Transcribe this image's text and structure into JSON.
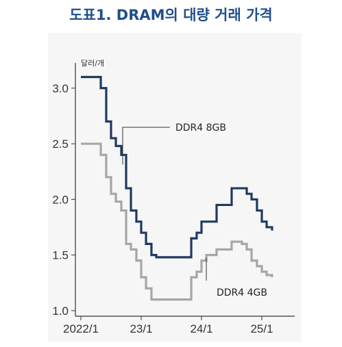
{
  "title": "도표1. DRAM의 대량 거래 가격",
  "chart_data": {
    "type": "line",
    "unit_label": "달러/개",
    "x_ticks": [
      "2022/1",
      "23/1",
      "24/1",
      "25/1"
    ],
    "y_ticks": [
      "1.0",
      "1.5",
      "2.0",
      "2.5",
      "3.0"
    ],
    "ylim": [
      0.95,
      3.3
    ],
    "xlim": [
      2022.0,
      2025.25
    ],
    "grid": false,
    "colors": {
      "ddr4_8gb": "#1e3a5f",
      "ddr4_4gb": "#a6a6a6",
      "title": "#1f4e8c"
    },
    "series": [
      {
        "name": "DDR4 8GB",
        "x": [
          2022.0,
          2022.25,
          2022.33,
          2022.42,
          2022.5,
          2022.58,
          2022.67,
          2022.75,
          2022.83,
          2022.92,
          2023.0,
          2023.08,
          2023.17,
          2023.25,
          2023.5,
          2023.75,
          2023.83,
          2023.92,
          2024.0,
          2024.25,
          2024.5,
          2024.75,
          2024.83,
          2024.92,
          2025.0,
          2025.08,
          2025.17
        ],
        "y": [
          3.1,
          3.1,
          3.0,
          2.7,
          2.55,
          2.48,
          2.4,
          2.1,
          1.9,
          1.8,
          1.7,
          1.6,
          1.5,
          1.48,
          1.48,
          1.48,
          1.65,
          1.7,
          1.8,
          1.95,
          2.1,
          2.05,
          2.0,
          1.9,
          1.8,
          1.75,
          1.72
        ]
      },
      {
        "name": "DDR4 4GB",
        "x": [
          2022.0,
          2022.25,
          2022.33,
          2022.42,
          2022.5,
          2022.58,
          2022.67,
          2022.75,
          2022.83,
          2022.92,
          2023.0,
          2023.08,
          2023.17,
          2023.5,
          2023.75,
          2023.83,
          2023.92,
          2024.0,
          2024.08,
          2024.25,
          2024.5,
          2024.67,
          2024.75,
          2024.83,
          2024.92,
          2025.0,
          2025.08,
          2025.17
        ],
        "y": [
          2.5,
          2.5,
          2.4,
          2.2,
          2.05,
          1.98,
          1.9,
          1.6,
          1.55,
          1.45,
          1.3,
          1.2,
          1.1,
          1.1,
          1.1,
          1.3,
          1.35,
          1.45,
          1.5,
          1.55,
          1.62,
          1.6,
          1.55,
          1.45,
          1.4,
          1.35,
          1.32,
          1.3
        ]
      }
    ]
  }
}
